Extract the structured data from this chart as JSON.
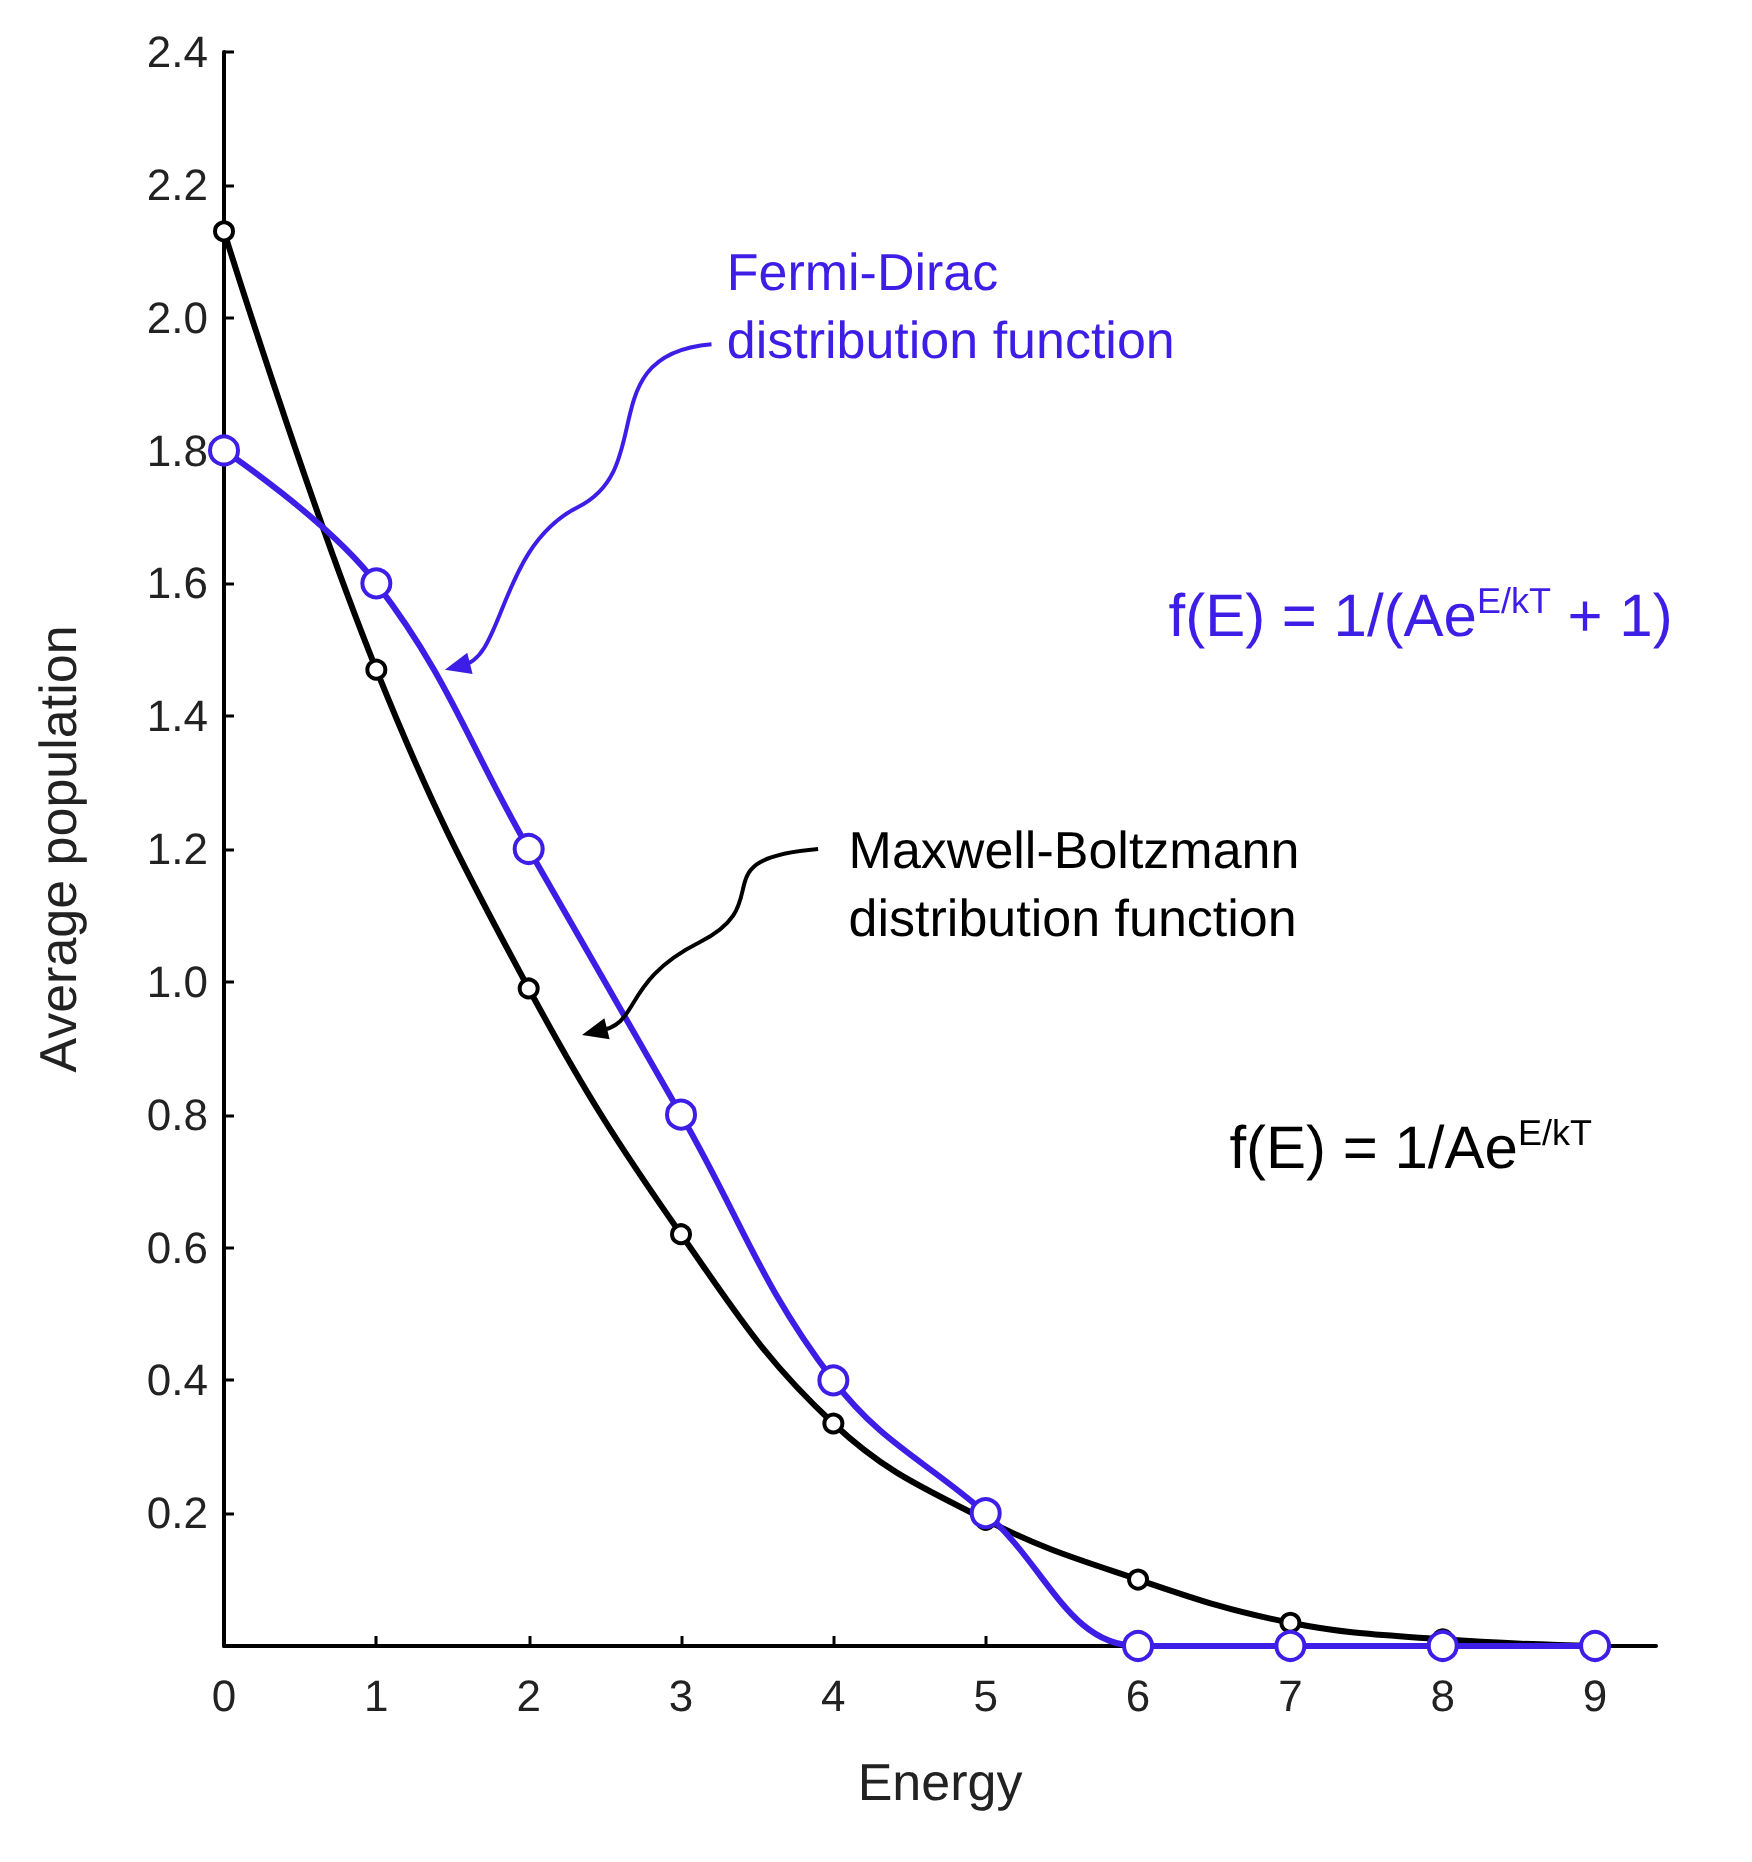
{
  "chart_data": {
    "type": "line",
    "xlabel": "Energy",
    "ylabel": "Average population",
    "x": [
      0,
      1,
      2,
      3,
      4,
      5,
      6,
      7,
      8,
      9
    ],
    "series": [
      {
        "name": "Fermi-Dirac distribution function",
        "color": "#3d1ee6",
        "values": [
          1.8,
          1.6,
          1.2,
          0.8,
          0.4,
          0.2,
          0,
          0,
          0,
          0
        ]
      },
      {
        "name": "Maxwell-Boltzmann distribution function",
        "color": "#000000",
        "values": [
          2.13,
          1.47,
          0.99,
          0.62,
          0.335,
          0.19,
          0.1,
          0.035,
          0.01,
          0
        ]
      }
    ],
    "annotations": [
      "f(E) = 1/(Ae$^{E/kT}$ + 1)",
      "f(E) = 1/Ae$^{E/kT}$"
    ],
    "xlim": [
      0,
      9.4
    ],
    "ylim": [
      0,
      2.4
    ],
    "xticks": [
      0,
      1,
      2,
      3,
      4,
      5,
      6,
      7,
      8,
      9
    ],
    "yticks": [
      0.2,
      0.4,
      0.6,
      0.8,
      {
        "value": 1,
        "label": "1.0"
      },
      1.2,
      1.4,
      1.6,
      1.8,
      {
        "value": 2,
        "label": "2.0"
      },
      2.2,
      2.4
    ],
    "grid": false,
    "legend": false,
    "marker": "circle",
    "line_style": "solid"
  }
}
